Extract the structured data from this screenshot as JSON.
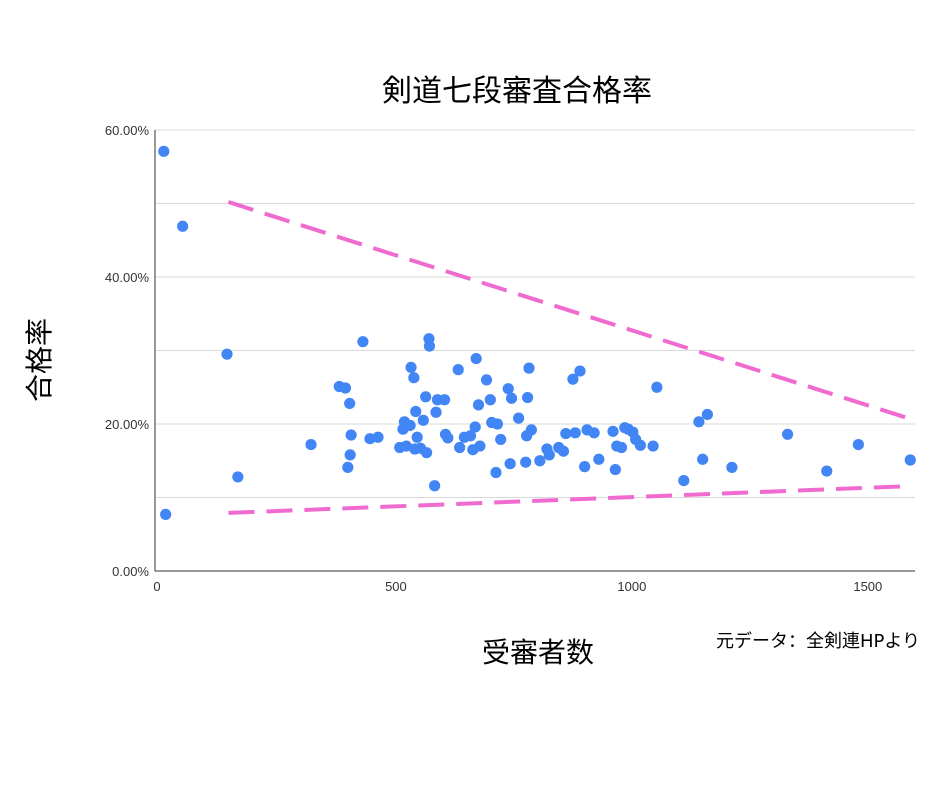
{
  "chart_data": {
    "type": "scatter",
    "title": "剣道七段審査合格率",
    "xlabel": "受審者数",
    "ylabel": "合格率",
    "note": "元データ：全剣連HPより",
    "xlim": [
      0,
      1600
    ],
    "ylim": [
      0,
      0.6
    ],
    "x_ticks": [
      {
        "value": 0,
        "label": "0"
      },
      {
        "value": 500,
        "label": "500"
      },
      {
        "value": 1000,
        "label": "1000"
      },
      {
        "value": 1500,
        "label": "1500"
      }
    ],
    "y_ticks": [
      {
        "value": 0.0,
        "label": "0.00%"
      },
      {
        "value": 0.2,
        "label": "20.00%"
      },
      {
        "value": 0.4,
        "label": "40.00%"
      },
      {
        "value": 0.6,
        "label": "60.00%"
      }
    ],
    "y_minor_grid": [
      0.1,
      0.3,
      0.5
    ],
    "grid": true,
    "colors": {
      "points": "#4285f4",
      "trend": "#f06bd0"
    },
    "trend_lines": [
      {
        "x": [
          145,
          1580
        ],
        "y": [
          0.502,
          0.209
        ]
      },
      {
        "x": [
          145,
          1570
        ],
        "y": [
          0.079,
          0.115
        ]
      }
    ],
    "points": [
      [
        8,
        0.571
      ],
      [
        12,
        0.077
      ],
      [
        48,
        0.469
      ],
      [
        142,
        0.295
      ],
      [
        165,
        0.128
      ],
      [
        320,
        0.172
      ],
      [
        380,
        0.251
      ],
      [
        393,
        0.249
      ],
      [
        398,
        0.141
      ],
      [
        402,
        0.228
      ],
      [
        403,
        0.158
      ],
      [
        405,
        0.185
      ],
      [
        430,
        0.312
      ],
      [
        445,
        0.18
      ],
      [
        462,
        0.182
      ],
      [
        508,
        0.168
      ],
      [
        515,
        0.193
      ],
      [
        518,
        0.203
      ],
      [
        522,
        0.17
      ],
      [
        530,
        0.198
      ],
      [
        532,
        0.277
      ],
      [
        538,
        0.263
      ],
      [
        540,
        0.166
      ],
      [
        542,
        0.217
      ],
      [
        545,
        0.182
      ],
      [
        552,
        0.167
      ],
      [
        558,
        0.205
      ],
      [
        563,
        0.237
      ],
      [
        565,
        0.161
      ],
      [
        570,
        0.316
      ],
      [
        571,
        0.306
      ],
      [
        582,
        0.116
      ],
      [
        585,
        0.216
      ],
      [
        588,
        0.233
      ],
      [
        603,
        0.233
      ],
      [
        605,
        0.186
      ],
      [
        610,
        0.181
      ],
      [
        632,
        0.274
      ],
      [
        635,
        0.168
      ],
      [
        645,
        0.182
      ],
      [
        658,
        0.184
      ],
      [
        663,
        0.165
      ],
      [
        668,
        0.196
      ],
      [
        670,
        0.289
      ],
      [
        675,
        0.226
      ],
      [
        678,
        0.17
      ],
      [
        692,
        0.26
      ],
      [
        700,
        0.233
      ],
      [
        703,
        0.202
      ],
      [
        712,
        0.134
      ],
      [
        715,
        0.2
      ],
      [
        722,
        0.179
      ],
      [
        738,
        0.248
      ],
      [
        742,
        0.146
      ],
      [
        745,
        0.235
      ],
      [
        760,
        0.208
      ],
      [
        775,
        0.148
      ],
      [
        777,
        0.184
      ],
      [
        779,
        0.236
      ],
      [
        782,
        0.276
      ],
      [
        787,
        0.192
      ],
      [
        805,
        0.15
      ],
      [
        820,
        0.166
      ],
      [
        825,
        0.158
      ],
      [
        845,
        0.168
      ],
      [
        855,
        0.163
      ],
      [
        860,
        0.187
      ],
      [
        875,
        0.261
      ],
      [
        880,
        0.188
      ],
      [
        890,
        0.272
      ],
      [
        900,
        0.142
      ],
      [
        905,
        0.192
      ],
      [
        920,
        0.188
      ],
      [
        930,
        0.152
      ],
      [
        960,
        0.19
      ],
      [
        965,
        0.138
      ],
      [
        968,
        0.17
      ],
      [
        978,
        0.168
      ],
      [
        985,
        0.195
      ],
      [
        992,
        0.193
      ],
      [
        1002,
        0.189
      ],
      [
        1008,
        0.179
      ],
      [
        1018,
        0.171
      ],
      [
        1045,
        0.17
      ],
      [
        1053,
        0.25
      ],
      [
        1110,
        0.123
      ],
      [
        1142,
        0.203
      ],
      [
        1150,
        0.152
      ],
      [
        1160,
        0.213
      ],
      [
        1212,
        0.141
      ],
      [
        1330,
        0.186
      ],
      [
        1413,
        0.136
      ],
      [
        1480,
        0.172
      ],
      [
        1590,
        0.151
      ]
    ]
  }
}
